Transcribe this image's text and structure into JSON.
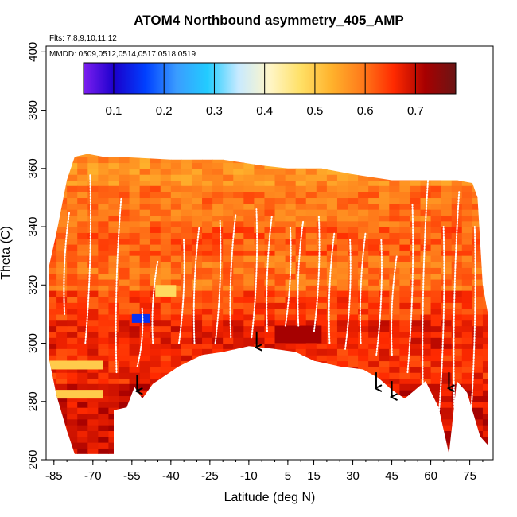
{
  "chart_data": {
    "type": "heatmap",
    "title": "ATOM4 Northbound asymmetry_405_AMP",
    "flights_note": "Flts: 7,8,9,10,11,12",
    "dates_note": "MMDD: 0509,0512,0514,0517,0518,0519",
    "xlabel": "Latitude (deg N)",
    "ylabel": "Theta (C)",
    "xlim": [
      -88,
      84
    ],
    "ylim": [
      260,
      402
    ],
    "x_ticks": [
      -85,
      -70,
      -55,
      -40,
      -25,
      -10,
      5,
      15,
      30,
      45,
      60,
      75
    ],
    "y_ticks": [
      260,
      280,
      300,
      320,
      340,
      360,
      380,
      400
    ],
    "colorbar": {
      "range": [
        0.04,
        0.78
      ],
      "ticks": [
        0.1,
        0.2,
        0.3,
        0.4,
        0.5,
        0.6,
        0.7
      ],
      "colors": [
        "#7d1ff0",
        "#1a00cc",
        "#0040ff",
        "#3a9cff",
        "#22ccff",
        "#c8eaff",
        "#fff6c8",
        "#ffe066",
        "#ffb22c",
        "#ff7a1a",
        "#ff2a00",
        "#a80000",
        "#6b1515"
      ]
    },
    "field": {
      "description": "Curtain of asymmetry parameter vs latitude and potential temperature",
      "upper_boundary": [
        [
          -87,
          326
        ],
        [
          -84,
          338
        ],
        [
          -80,
          356
        ],
        [
          -77,
          364
        ],
        [
          -72,
          365
        ],
        [
          -66,
          364
        ],
        [
          -60,
          364
        ],
        [
          -40,
          363
        ],
        [
          -20,
          363
        ],
        [
          -5,
          361
        ],
        [
          5,
          360
        ],
        [
          18,
          360
        ],
        [
          30,
          358
        ],
        [
          45,
          356
        ],
        [
          60,
          356
        ],
        [
          70,
          356
        ],
        [
          76,
          355
        ],
        [
          78,
          350
        ],
        [
          80,
          320
        ],
        [
          82,
          310
        ]
      ],
      "lower_boundary": [
        [
          82,
          265
        ],
        [
          79,
          268
        ],
        [
          74,
          283
        ],
        [
          70,
          287
        ],
        [
          67,
          262
        ],
        [
          63,
          278
        ],
        [
          58,
          287
        ],
        [
          50,
          281
        ],
        [
          45,
          284
        ],
        [
          40,
          288
        ],
        [
          34,
          291
        ],
        [
          25,
          292
        ],
        [
          15,
          294
        ],
        [
          8,
          297
        ],
        [
          0,
          298
        ],
        [
          -10,
          299
        ],
        [
          -20,
          297
        ],
        [
          -28,
          296
        ],
        [
          -37,
          292
        ],
        [
          -47,
          286
        ],
        [
          -51,
          281
        ],
        [
          -54,
          285
        ],
        [
          -57,
          278
        ],
        [
          -62,
          277
        ],
        [
          -62,
          262
        ],
        [
          -77,
          262
        ],
        [
          -80,
          270
        ],
        [
          -84,
          282
        ],
        [
          -87,
          295
        ]
      ],
      "bands": [
        {
          "theta_range": [
            354,
            366
          ],
          "value": 0.57
        },
        {
          "theta_range": [
            340,
            354
          ],
          "value": 0.6
        },
        {
          "theta_range": [
            330,
            340
          ],
          "value": 0.62
        },
        {
          "theta_range": [
            318,
            330
          ],
          "value": 0.6
        },
        {
          "theta_range": [
            308,
            318
          ],
          "value": 0.64
        },
        {
          "theta_range": [
            298,
            308
          ],
          "value": 0.67
        },
        {
          "theta_range": [
            286,
            298
          ],
          "value": 0.66
        },
        {
          "theta_range": [
            260,
            286
          ],
          "value": 0.69
        }
      ],
      "features": [
        {
          "label": "low-value patch",
          "lat": [
            -55,
            -48
          ],
          "theta": [
            307,
            310
          ],
          "value": 0.15
        },
        {
          "label": "pale streak",
          "lat": [
            -88,
            -66
          ],
          "theta": [
            281,
            284
          ],
          "value": 0.5
        },
        {
          "label": "pale streak",
          "lat": [
            -88,
            -66
          ],
          "theta": [
            291,
            294
          ],
          "value": 0.5
        },
        {
          "label": "pale streak",
          "lat": [
            -46,
            -38
          ],
          "theta": [
            316,
            320
          ],
          "value": 0.48
        },
        {
          "label": "deep red core",
          "lat": [
            0,
            18
          ],
          "theta": [
            300,
            306
          ],
          "value": 0.72
        }
      ]
    },
    "flight_tracks": [
      {
        "lat": -80,
        "theta": [
          310,
          345
        ]
      },
      {
        "lat": -72,
        "theta": [
          300,
          358
        ]
      },
      {
        "lat": -60,
        "theta": [
          290,
          350
        ]
      },
      {
        "lat": -52,
        "theta": [
          292,
          312
        ]
      },
      {
        "lat": -46,
        "theta": [
          300,
          328
        ]
      },
      {
        "lat": -36,
        "theta": [
          300,
          336
        ]
      },
      {
        "lat": -30,
        "theta": [
          300,
          340
        ]
      },
      {
        "lat": -22,
        "theta": [
          300,
          342
        ]
      },
      {
        "lat": -16,
        "theta": [
          302,
          344
        ]
      },
      {
        "lat": -8,
        "theta": [
          302,
          346
        ]
      },
      {
        "lat": -2,
        "theta": [
          304,
          344
        ]
      },
      {
        "lat": 5,
        "theta": [
          306,
          340
        ]
      },
      {
        "lat": 10,
        "theta": [
          306,
          342
        ]
      },
      {
        "lat": 16,
        "theta": [
          304,
          344
        ]
      },
      {
        "lat": 22,
        "theta": [
          300,
          338
        ]
      },
      {
        "lat": 28,
        "theta": [
          298,
          336
        ]
      },
      {
        "lat": 34,
        "theta": [
          300,
          338
        ]
      },
      {
        "lat": 40,
        "theta": [
          296,
          336
        ]
      },
      {
        "lat": 46,
        "theta": [
          296,
          330
        ]
      },
      {
        "lat": 52,
        "theta": [
          290,
          348
        ]
      },
      {
        "lat": 58,
        "theta": [
          280,
          356
        ]
      },
      {
        "lat": 64,
        "theta": [
          275,
          340
        ]
      },
      {
        "lat": 70,
        "theta": [
          278,
          352
        ]
      },
      {
        "lat": 76,
        "theta": [
          270,
          340
        ]
      }
    ],
    "arrows": [
      {
        "lat": -53,
        "theta_tip": 283
      },
      {
        "lat": -7,
        "theta_tip": 298
      },
      {
        "lat": 39,
        "theta_tip": 284
      },
      {
        "lat": 45,
        "theta_tip": 281
      },
      {
        "lat": 67,
        "theta_tip": 284
      }
    ]
  }
}
